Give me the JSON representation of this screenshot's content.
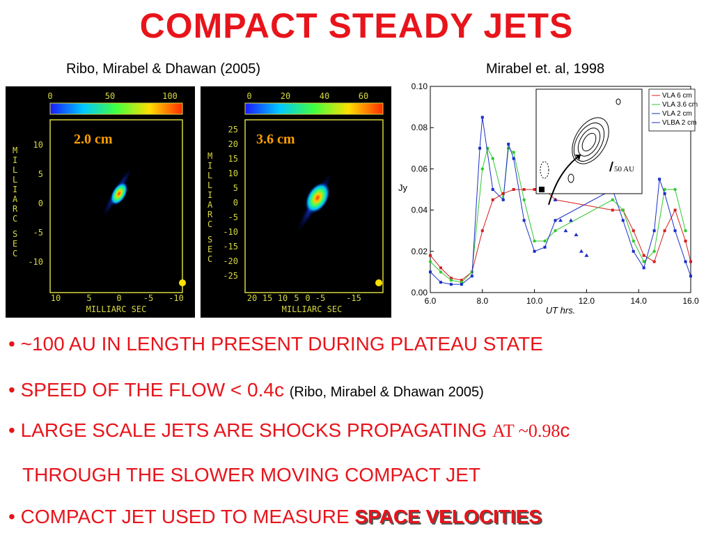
{
  "title": "COMPACT STEADY JETS",
  "refs": {
    "left": "Ribo, Mirabel & Dhawan (2005)",
    "right": "Mirabel et. al, 1998"
  },
  "map1": {
    "label": "2.0 cm",
    "colorbar_ticks": [
      "0",
      "50",
      "100"
    ],
    "y_axis_title": "MILLIARC SEC",
    "y_ticks": [
      "10",
      "5",
      "0",
      "-5",
      "-10"
    ],
    "x_ticks": [
      "10",
      "5",
      "0",
      "-5",
      "-10"
    ],
    "x_axis_title": "MILLIARC SEC"
  },
  "map2": {
    "label": "3.6 cm",
    "colorbar_ticks": [
      "0",
      "20",
      "40",
      "60"
    ],
    "y_axis_title": "MILLIARC SEC",
    "y_ticks": [
      "25",
      "20",
      "15",
      "10",
      "5",
      "0",
      "-5",
      "-10",
      "-15",
      "-20",
      "-25"
    ],
    "x_ticks": [
      "20",
      "15",
      "10",
      "5",
      "0",
      "-5",
      "-15"
    ],
    "x_axis_title": "MILLIARC SEC"
  },
  "chart_data": {
    "type": "line",
    "xlabel": "UT hrs.",
    "ylabel": "Jy",
    "xlim": [
      6.0,
      16.0
    ],
    "ylim": [
      0.0,
      0.1
    ],
    "x_ticks": [
      "6.0",
      "8.0",
      "10.0",
      "12.0",
      "14.0",
      "16.0"
    ],
    "y_ticks": [
      "0.00",
      "0.02",
      "0.04",
      "0.06",
      "0.08",
      "0.10"
    ],
    "legend": [
      "VLA 6 cm",
      "VLA 3.6 cm",
      "VLA 2 cm",
      "VLBA 2 cm"
    ],
    "inset_label": "50 AU",
    "series": [
      {
        "name": "VLA 6 cm",
        "color": "#d42020",
        "marker": "square",
        "x": [
          6.0,
          6.4,
          6.8,
          7.2,
          7.6,
          8.0,
          8.4,
          8.8,
          9.2,
          9.6,
          10.0,
          10.4,
          10.8,
          13.0,
          13.4,
          13.8,
          14.2,
          14.6,
          15.0,
          15.4,
          15.8,
          16.0
        ],
        "y": [
          0.018,
          0.012,
          0.007,
          0.006,
          0.01,
          0.03,
          0.045,
          0.048,
          0.05,
          0.05,
          0.05,
          0.05,
          0.045,
          0.04,
          0.04,
          0.03,
          0.018,
          0.015,
          0.03,
          0.04,
          0.025,
          0.015
        ]
      },
      {
        "name": "VLA 3.6 cm",
        "color": "#2fc82f",
        "marker": "circle",
        "x": [
          6.0,
          6.4,
          6.8,
          7.2,
          7.6,
          8.0,
          8.2,
          8.4,
          8.8,
          9.0,
          9.2,
          9.6,
          10.0,
          10.4,
          10.8,
          13.0,
          13.4,
          13.8,
          14.2,
          14.6,
          15.0,
          15.4,
          15.8
        ],
        "y": [
          0.015,
          0.01,
          0.006,
          0.005,
          0.01,
          0.06,
          0.07,
          0.065,
          0.045,
          0.07,
          0.068,
          0.045,
          0.025,
          0.025,
          0.03,
          0.045,
          0.04,
          0.025,
          0.015,
          0.02,
          0.05,
          0.05,
          0.03
        ]
      },
      {
        "name": "VLA 2 cm",
        "color": "#1a2fc8",
        "marker": "square",
        "x": [
          6.0,
          6.4,
          6.8,
          7.2,
          7.6,
          7.9,
          8.0,
          8.4,
          8.8,
          9.0,
          9.2,
          9.6,
          10.0,
          10.4,
          10.8,
          13.0,
          13.4,
          13.8,
          14.2,
          14.6,
          14.8,
          15.0,
          15.4,
          15.8,
          16.0
        ],
        "y": [
          0.01,
          0.005,
          0.004,
          0.004,
          0.008,
          0.07,
          0.085,
          0.05,
          0.045,
          0.072,
          0.065,
          0.035,
          0.02,
          0.022,
          0.035,
          0.05,
          0.035,
          0.02,
          0.012,
          0.03,
          0.055,
          0.048,
          0.03,
          0.015,
          0.008
        ]
      },
      {
        "name": "VLBA 2 cm",
        "color": "#1a2fc8",
        "marker": "triangle",
        "x": [
          10.8,
          11.0,
          11.2,
          11.4,
          11.6,
          11.8,
          12.0
        ],
        "y": [
          0.045,
          0.035,
          0.03,
          0.035,
          0.028,
          0.02,
          0.018
        ]
      }
    ]
  },
  "bullets": {
    "b1": "~100 AU IN LENGTH PRESENT DURING PLATEAU STATE",
    "b2_main": "SPEED OF THE FLOW < 0.4c",
    "b2_ref": "(Ribo, Mirabel & Dhawan 2005)",
    "b3_main": "LARGE SCALE JETS ARE SHOCKS PROPAGATING",
    "b3_at": "AT ~0.98",
    "b3_c": "c",
    "b4": "THROUGH THE SLOWER MOVING COMPACT JET",
    "b5_main": "COMPACT JET USED TO MEASURE",
    "b5_emph": "SPACE VELOCITIES"
  }
}
